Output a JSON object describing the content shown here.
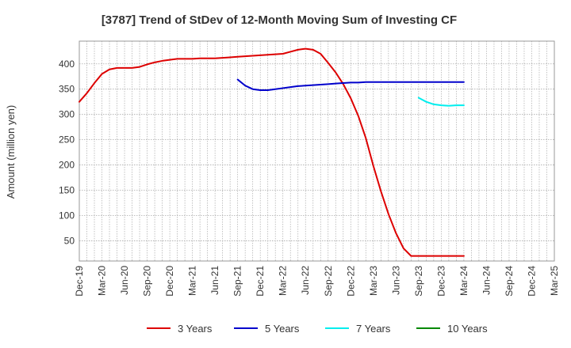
{
  "chart_data": {
    "type": "line",
    "title": "[3787]  Trend of StDev of 12-Month Moving Sum of Investing CF",
    "xlabel": "",
    "ylabel": "Amount (million yen)",
    "x_ticks": [
      "Dec-19",
      "Mar-20",
      "Jun-20",
      "Sep-20",
      "Dec-20",
      "Mar-21",
      "Jun-21",
      "Sep-21",
      "Dec-21",
      "Mar-22",
      "Jun-22",
      "Sep-22",
      "Dec-22",
      "Mar-23",
      "Jun-23",
      "Sep-23",
      "Dec-23",
      "Mar-24",
      "Jun-24",
      "Sep-24",
      "Dec-24",
      "Mar-25"
    ],
    "y_ticks": [
      50,
      100,
      150,
      200,
      250,
      300,
      350,
      400
    ],
    "ylim": [
      10,
      445
    ],
    "grid": true,
    "legend_position": "bottom",
    "series": [
      {
        "name": "3 Years",
        "color": "#dd0000",
        "points": [
          [
            "Dec-19",
            325
          ],
          [
            "Jan-20",
            342
          ],
          [
            "Feb-20",
            362
          ],
          [
            "Mar-20",
            380
          ],
          [
            "Apr-20",
            389
          ],
          [
            "May-20",
            392
          ],
          [
            "Jun-20",
            392
          ],
          [
            "Jul-20",
            392
          ],
          [
            "Aug-20",
            394
          ],
          [
            "Sep-20",
            399
          ],
          [
            "Oct-20",
            403
          ],
          [
            "Nov-20",
            406
          ],
          [
            "Dec-20",
            408
          ],
          [
            "Jan-21",
            410
          ],
          [
            "Feb-21",
            410
          ],
          [
            "Mar-21",
            410
          ],
          [
            "Apr-21",
            411
          ],
          [
            "May-21",
            411
          ],
          [
            "Jun-21",
            411
          ],
          [
            "Jul-21",
            412
          ],
          [
            "Aug-21",
            413
          ],
          [
            "Sep-21",
            414
          ],
          [
            "Oct-21",
            415
          ],
          [
            "Nov-21",
            416
          ],
          [
            "Dec-21",
            417
          ],
          [
            "Jan-22",
            418
          ],
          [
            "Feb-22",
            419
          ],
          [
            "Mar-22",
            420
          ],
          [
            "Apr-22",
            424
          ],
          [
            "May-22",
            428
          ],
          [
            "Jun-22",
            430
          ],
          [
            "Jul-22",
            428
          ],
          [
            "Aug-22",
            420
          ],
          [
            "Sep-22",
            402
          ],
          [
            "Oct-22",
            383
          ],
          [
            "Nov-22",
            360
          ],
          [
            "Dec-22",
            332
          ],
          [
            "Jan-23",
            297
          ],
          [
            "Feb-23",
            253
          ],
          [
            "Mar-23",
            198
          ],
          [
            "Apr-23",
            148
          ],
          [
            "May-23",
            103
          ],
          [
            "Jun-23",
            65
          ],
          [
            "Jul-23",
            35
          ],
          [
            "Aug-23",
            20
          ],
          [
            "Sep-23",
            20
          ],
          [
            "Oct-23",
            20
          ],
          [
            "Nov-23",
            20
          ],
          [
            "Dec-23",
            20
          ],
          [
            "Jan-24",
            20
          ],
          [
            "Feb-24",
            20
          ],
          [
            "Mar-24",
            20
          ]
        ]
      },
      {
        "name": "5 Years",
        "color": "#0000cc",
        "points": [
          [
            "Sep-21",
            369
          ],
          [
            "Oct-21",
            357
          ],
          [
            "Nov-21",
            350
          ],
          [
            "Dec-21",
            348
          ],
          [
            "Jan-22",
            348
          ],
          [
            "Feb-22",
            350
          ],
          [
            "Mar-22",
            352
          ],
          [
            "Apr-22",
            354
          ],
          [
            "May-22",
            356
          ],
          [
            "Jun-22",
            357
          ],
          [
            "Jul-22",
            358
          ],
          [
            "Aug-22",
            359
          ],
          [
            "Sep-22",
            360
          ],
          [
            "Oct-22",
            361
          ],
          [
            "Nov-22",
            362
          ],
          [
            "Dec-22",
            363
          ],
          [
            "Jan-23",
            363
          ],
          [
            "Feb-23",
            364
          ],
          [
            "Mar-23",
            364
          ],
          [
            "Apr-23",
            364
          ],
          [
            "May-23",
            364
          ],
          [
            "Jun-23",
            364
          ],
          [
            "Jul-23",
            364
          ],
          [
            "Aug-23",
            364
          ],
          [
            "Sep-23",
            364
          ],
          [
            "Oct-23",
            364
          ],
          [
            "Nov-23",
            364
          ],
          [
            "Dec-23",
            364
          ],
          [
            "Jan-24",
            364
          ],
          [
            "Feb-24",
            364
          ],
          [
            "Mar-24",
            364
          ]
        ]
      },
      {
        "name": "7 Years",
        "color": "#00eeee",
        "points": [
          [
            "Sep-23",
            333
          ],
          [
            "Oct-23",
            325
          ],
          [
            "Nov-23",
            320
          ],
          [
            "Dec-23",
            318
          ],
          [
            "Jan-24",
            317
          ],
          [
            "Feb-24",
            318
          ],
          [
            "Mar-24",
            318
          ]
        ]
      },
      {
        "name": "10 Years",
        "color": "#008800",
        "points": []
      }
    ]
  }
}
